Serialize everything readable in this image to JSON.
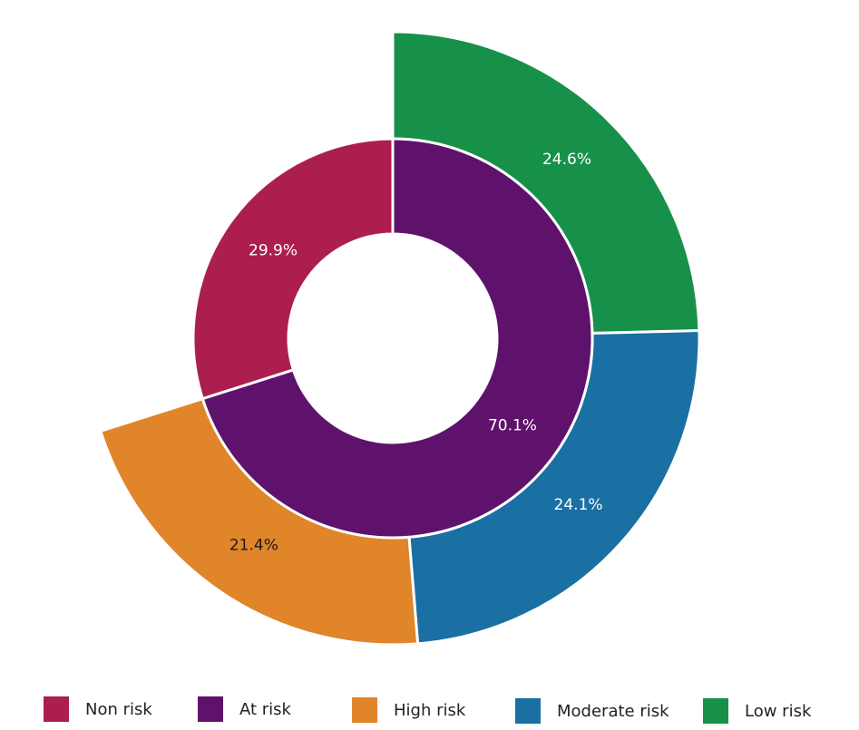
{
  "chart_data": {
    "type": "pie",
    "inner_ring": {
      "slices": [
        {
          "category": "Non risk",
          "value": 29.9,
          "label": "29.9%",
          "color": "#AD1E50"
        },
        {
          "category": "At risk",
          "value": 70.1,
          "label": "70.1%",
          "color": "#5F126B"
        }
      ]
    },
    "outer_ring": {
      "slices": [
        {
          "category": "Low risk",
          "value": 24.6,
          "label": "24.6%",
          "color": "#17904A"
        },
        {
          "category": "Moderate risk",
          "value": 24.1,
          "label": "24.1%",
          "color": "#1A6FA3"
        },
        {
          "category": "High risk",
          "value": 21.4,
          "label": "21.4%",
          "color": "#E0852A"
        }
      ]
    },
    "legend": {
      "position": "bottom",
      "items": [
        {
          "label": "Non risk",
          "color": "#AD1E50"
        },
        {
          "label": "At risk",
          "color": "#5F126B"
        },
        {
          "label": "High risk",
          "color": "#E0852A"
        },
        {
          "label": "Moderate risk",
          "color": "#1A6FA3"
        },
        {
          "label": "Low risk",
          "color": "#17904A"
        }
      ]
    }
  }
}
